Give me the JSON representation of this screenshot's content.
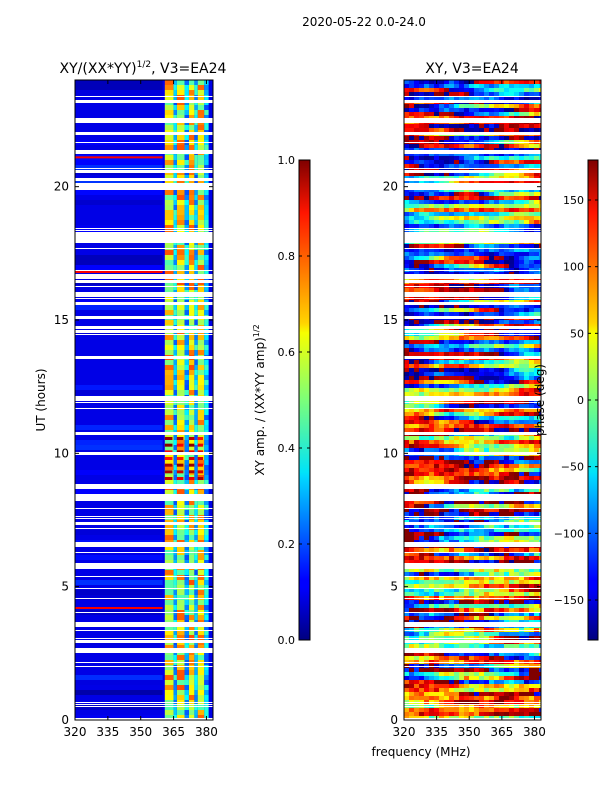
{
  "figure": {
    "suptitle": "2020-05-22 0.0-24.0",
    "xlabel": "frequency (MHz)"
  },
  "colors": {
    "background": "#ffffff",
    "axes": "#000000"
  },
  "chart_data": [
    {
      "type": "heatmap",
      "title_parts": {
        "base": "XY/(XX*YY)",
        "sup": "1/2",
        "tail": ", V3=EA24"
      },
      "ylabel": "UT (hours)",
      "xlim": [
        320,
        383
      ],
      "ylim": [
        0,
        24
      ],
      "xticks": [
        320,
        335,
        350,
        365,
        380
      ],
      "yticks": [
        0,
        5,
        10,
        15,
        20
      ],
      "colorbar": {
        "label_parts": {
          "base": "XY amp. / (XX*YY amp)",
          "sup": "1/2"
        },
        "range": [
          0,
          1
        ],
        "ticks": [
          "0.0",
          "0.2",
          "0.4",
          "0.6",
          "0.8",
          "1.0"
        ],
        "colormap": "jet"
      },
      "description": "mostly low amplitude (~0.05-0.15) below 360 MHz; bright bands (~0.4-0.9) between 361 and 381 MHz"
    },
    {
      "type": "heatmap",
      "title": "XY, V3=EA24",
      "xlim": [
        320,
        383
      ],
      "ylim": [
        0,
        24
      ],
      "xticks": [
        320,
        335,
        350,
        365,
        380
      ],
      "yticks": [
        0,
        5,
        10,
        15,
        20
      ],
      "colorbar": {
        "label": "phase (deg)",
        "range": [
          -180,
          180
        ],
        "ticks": [
          "-150",
          "-100",
          "-50",
          "0",
          "50",
          "100",
          "150"
        ],
        "colormap": "jet"
      },
      "description": "phase varies broadly across the full range -180 to 180 degrees"
    }
  ]
}
